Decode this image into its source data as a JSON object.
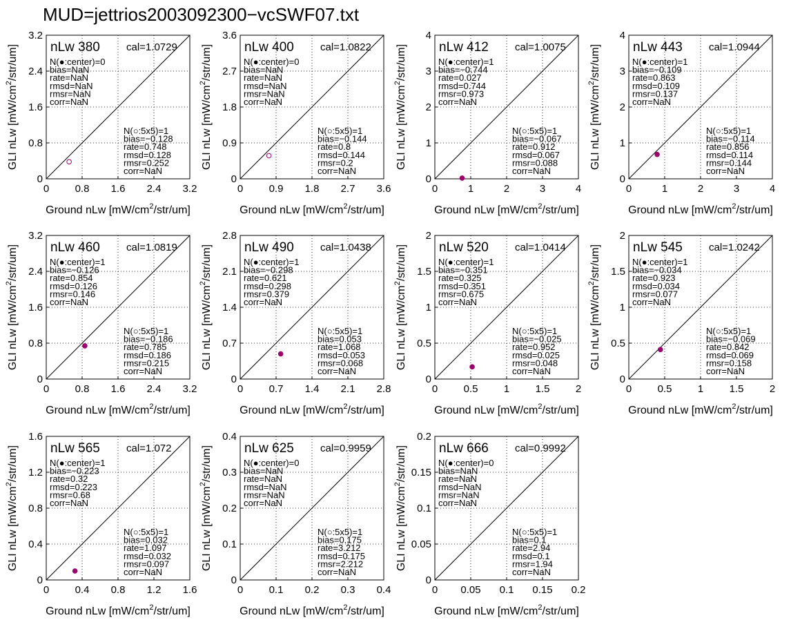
{
  "page": {
    "title": "MUD=jettrios2003092300−vcSWF07.txt"
  },
  "axis_text": {
    "xlabel_prefix": "Ground nLw [mW/cm",
    "ylabel_prefix": "GLI nLw [mW/cm",
    "label_sup": "2",
    "label_suffix": "/str/um]"
  },
  "chart_data": [
    {
      "type": "scatter",
      "panel_label": "nLw 380",
      "cal": "cal=1.0729",
      "lim": [
        0,
        3.2
      ],
      "ticks": [
        "0",
        "0.8",
        "1.6",
        "2.4",
        "3.2"
      ],
      "xlabel": "Ground nLw [mW/cm2/str/um]",
      "ylabel": "GLI nLw [mW/cm2/str/um]",
      "center_stats": [
        "N(●:center)=0",
        "bias=NaN",
        "rate=NaN",
        "rmsd=NaN",
        "rmsr=NaN",
        "corr=NaN"
      ],
      "box_stats": [
        "N(○:5x5)=1",
        "bias=−0.128",
        "rate=0.748",
        "rmsd=0.128",
        "rmsr=0.252",
        "corr=NaN"
      ],
      "points": [
        {
          "x": 0.51,
          "y": 0.38,
          "filled": false
        }
      ]
    },
    {
      "type": "scatter",
      "panel_label": "nLw 400",
      "cal": "cal=1.0822",
      "lim": [
        0,
        3.6
      ],
      "ticks": [
        "0",
        "0.9",
        "1.8",
        "2.7",
        "3.6"
      ],
      "xlabel": "Ground nLw [mW/cm2/str/um]",
      "ylabel": "GLI nLw [mW/cm2/str/um]",
      "center_stats": [
        "N(●:center)=0",
        "bias=NaN",
        "rate=NaN",
        "rmsd=NaN",
        "rmsr=NaN",
        "corr=NaN"
      ],
      "box_stats": [
        "N(○:5x5)=1",
        "bias=−0.144",
        "rate=0.8",
        "rmsd=0.144",
        "rmsr=0.2",
        "corr=NaN"
      ],
      "points": [
        {
          "x": 0.72,
          "y": 0.58,
          "filled": false
        }
      ]
    },
    {
      "type": "scatter",
      "panel_label": "nLw 412",
      "cal": "cal=1.0075",
      "lim": [
        0,
        4
      ],
      "ticks": [
        "0",
        "1",
        "2",
        "3",
        "4"
      ],
      "xlabel": "Ground nLw [mW/cm2/str/um]",
      "ylabel": "GLI nLw [mW/cm2/str/um]",
      "center_stats": [
        "N(●:center)=1",
        "bias=−0.744",
        "rate=0.027",
        "rmsd=0.744",
        "rmsr=0.973",
        "corr=NaN"
      ],
      "box_stats": [
        "N(○:5x5)=1",
        "bias=−0.067",
        "rate=0.912",
        "rmsd=0.067",
        "rmsr=0.088",
        "corr=NaN"
      ],
      "points": [
        {
          "x": 0.76,
          "y": 0.02,
          "filled": true
        }
      ]
    },
    {
      "type": "scatter",
      "panel_label": "nLw 443",
      "cal": "cal=1.0944",
      "lim": [
        0,
        4
      ],
      "ticks": [
        "0",
        "1",
        "2",
        "3",
        "4"
      ],
      "xlabel": "Ground nLw [mW/cm2/str/um]",
      "ylabel": "GLI nLw [mW/cm2/str/um]",
      "center_stats": [
        "N(●:center)=1",
        "bias=−0.109",
        "rate=0.863",
        "rmsd=0.109",
        "rmsr=0.137",
        "corr=NaN"
      ],
      "box_stats": [
        "N(○:5x5)=1",
        "bias=−0.114",
        "rate=0.856",
        "rmsd=0.114",
        "rmsr=0.144",
        "corr=NaN"
      ],
      "points": [
        {
          "x": 0.79,
          "y": 0.68,
          "filled": true
        }
      ]
    },
    {
      "type": "scatter",
      "panel_label": "nLw 460",
      "cal": "cal=1.0819",
      "lim": [
        0,
        3.2
      ],
      "ticks": [
        "0",
        "0.8",
        "1.6",
        "2.4",
        "3.2"
      ],
      "xlabel": "Ground nLw [mW/cm2/str/um]",
      "ylabel": "GLI nLw [mW/cm2/str/um]",
      "center_stats": [
        "N(●:center)=1",
        "bias=−0.126",
        "rate=0.854",
        "rmsd=0.126",
        "rmsr=0.146",
        "corr=NaN"
      ],
      "box_stats": [
        "N(○:5x5)=1",
        "bias=−0.186",
        "rate=0.785",
        "rmsd=0.186",
        "rmsr=0.215",
        "corr=NaN"
      ],
      "points": [
        {
          "x": 0.86,
          "y": 0.74,
          "filled": true
        }
      ]
    },
    {
      "type": "scatter",
      "panel_label": "nLw 490",
      "cal": "cal=1.0438",
      "lim": [
        0,
        2.8
      ],
      "ticks": [
        "0",
        "0.7",
        "1.4",
        "2.1",
        "2.8"
      ],
      "xlabel": "Ground nLw [mW/cm2/str/um]",
      "ylabel": "GLI nLw [mW/cm2/str/um]",
      "center_stats": [
        "N(●:center)=1",
        "bias=−0.298",
        "rate=0.621",
        "rmsd=0.298",
        "rmsr=0.379",
        "corr=NaN"
      ],
      "box_stats": [
        "N(○:5x5)=1",
        "bias=0.053",
        "rate=1.068",
        "rmsd=0.053",
        "rmsr=0.068",
        "corr=NaN"
      ],
      "points": [
        {
          "x": 0.79,
          "y": 0.49,
          "filled": true
        }
      ]
    },
    {
      "type": "scatter",
      "panel_label": "nLw 520",
      "cal": "cal=1.0414",
      "lim": [
        0,
        2
      ],
      "ticks": [
        "0",
        "0.5",
        "1",
        "1.5",
        "2"
      ],
      "xlabel": "Ground nLw [mW/cm2/str/um]",
      "ylabel": "GLI nLw [mW/cm2/str/um]",
      "center_stats": [
        "N(●:center)=1",
        "bias=−0.351",
        "rate=0.325",
        "rmsd=0.351",
        "rmsr=0.675",
        "corr=NaN"
      ],
      "box_stats": [
        "N(○:5x5)=1",
        "bias=−0.025",
        "rate=0.952",
        "rmsd=0.025",
        "rmsr=0.048",
        "corr=NaN"
      ],
      "points": [
        {
          "x": 0.52,
          "y": 0.17,
          "filled": true
        }
      ]
    },
    {
      "type": "scatter",
      "panel_label": "nLw 545",
      "cal": "cal=1.0242",
      "lim": [
        0,
        2
      ],
      "ticks": [
        "0",
        "0.5",
        "1",
        "1.5",
        "2"
      ],
      "xlabel": "Ground nLw [mW/cm2/str/um]",
      "ylabel": "GLI nLw [mW/cm2/str/um]",
      "center_stats": [
        "N(●:center)=1",
        "bias=−0.034",
        "rate=0.923",
        "rmsd=0.034",
        "rmsr=0.077",
        "corr=NaN"
      ],
      "box_stats": [
        "N(○:5x5)=1",
        "bias=−0.069",
        "rate=0.842",
        "rmsd=0.069",
        "rmsr=0.158",
        "corr=NaN"
      ],
      "points": [
        {
          "x": 0.44,
          "y": 0.41,
          "filled": true
        }
      ]
    },
    {
      "type": "scatter",
      "panel_label": "nLw 565",
      "cal": "cal=1.072",
      "lim": [
        0,
        1.6
      ],
      "ticks": [
        "0",
        "0.4",
        "0.8",
        "1.2",
        "1.6"
      ],
      "xlabel": "Ground nLw [mW/cm2/str/um]",
      "ylabel": "GLI nLw [mW/cm2/str/um]",
      "center_stats": [
        "N(●:center)=1",
        "bias=−0.223",
        "rate=0.32",
        "rmsd=0.223",
        "rmsr=0.68",
        "corr=NaN"
      ],
      "box_stats": [
        "N(○:5x5)=1",
        "bias=0.032",
        "rate=1.097",
        "rmsd=0.032",
        "rmsr=0.097",
        "corr=NaN"
      ],
      "points": [
        {
          "x": 0.32,
          "y": 0.1,
          "filled": true
        }
      ]
    },
    {
      "type": "scatter",
      "panel_label": "nLw 625",
      "cal": "cal=0.9959",
      "lim": [
        0,
        0.4
      ],
      "ticks": [
        "0",
        "0.1",
        "0.2",
        "0.3",
        "0.4"
      ],
      "xlabel": "Ground nLw [mW/cm2/str/um]",
      "ylabel": "GLI nLw [mW/cm2/str/um]",
      "center_stats": [
        "N(●:center)=0",
        "bias=NaN",
        "rate=NaN",
        "rmsd=NaN",
        "rmsr=NaN",
        "corr=NaN"
      ],
      "box_stats": [
        "N(○:5x5)=1",
        "bias=0.175",
        "rate=3.212",
        "rmsd=0.175",
        "rmsr=2.212",
        "corr=NaN"
      ],
      "points": []
    },
    {
      "type": "scatter",
      "panel_label": "nLw 666",
      "cal": "cal=0.9992",
      "lim": [
        0,
        0.2
      ],
      "ticks": [
        "0",
        "0.05",
        "0.1",
        "0.15",
        "0.2"
      ],
      "xlabel": "Ground nLw [mW/cm2/str/um]",
      "ylabel": "GLI nLw [mW/cm2/str/um]",
      "center_stats": [
        "N(●:center)=0",
        "bias=NaN",
        "rate=NaN",
        "rmsd=NaN",
        "rmsr=NaN",
        "corr=NaN"
      ],
      "box_stats": [
        "N(○:5x5)=1",
        "bias=0.1",
        "rate=2.94",
        "rmsd=0.1",
        "rmsr=1.94",
        "corr=NaN"
      ],
      "points": []
    }
  ],
  "colors": {
    "marker": "#a0006e",
    "axis": "#000000",
    "grid": "#000000"
  }
}
